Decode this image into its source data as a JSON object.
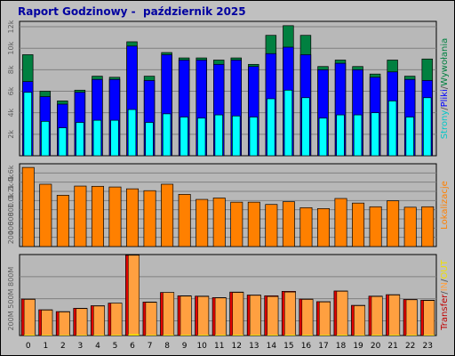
{
  "title": "Raport Godzinowy -  październik 2025",
  "chart_data": [
    {
      "type": "bar",
      "name": "top",
      "categories": [
        "0",
        "1",
        "2",
        "3",
        "4",
        "5",
        "6",
        "7",
        "8",
        "9",
        "10",
        "11",
        "12",
        "13",
        "14",
        "15",
        "16",
        "17",
        "18",
        "19",
        "20",
        "21",
        "22",
        "23"
      ],
      "series": [
        {
          "name": "Wywołania",
          "values": [
            9400,
            6000,
            5100,
            6100,
            7400,
            7300,
            10600,
            7400,
            9600,
            9100,
            9100,
            8900,
            9100,
            8500,
            11200,
            12100,
            11200,
            8300,
            8900,
            8300,
            7600,
            8900,
            7400,
            9000
          ]
        },
        {
          "name": "Pliki",
          "values": [
            6900,
            5500,
            4800,
            5900,
            7100,
            7100,
            10200,
            7000,
            9400,
            8900,
            8900,
            8500,
            8900,
            8300,
            9500,
            10100,
            9400,
            8000,
            8600,
            8000,
            7300,
            7800,
            7100,
            7000
          ]
        },
        {
          "name": "Strony",
          "values": [
            5900,
            3200,
            2600,
            3100,
            3300,
            3300,
            4300,
            3100,
            3900,
            3600,
            3500,
            3800,
            3700,
            3600,
            5300,
            6100,
            5400,
            3500,
            3800,
            3800,
            4000,
            5100,
            3600,
            5400
          ]
        }
      ],
      "right_label": [
        "Strony",
        "/",
        "Pliki",
        "/",
        "Wywołania"
      ],
      "right_label_colors": [
        "#00c8c8",
        "#505050",
        "#0000ff",
        "#505050",
        "#008040"
      ],
      "y_ticks": [
        "2k",
        "4k",
        "6k",
        "8k",
        "10k",
        "12k"
      ],
      "y_tick_values": [
        2000,
        4000,
        6000,
        8000,
        10000,
        12000
      ],
      "ylim": [
        0,
        12500
      ]
    },
    {
      "type": "bar",
      "name": "middle",
      "categories": [
        "0",
        "1",
        "2",
        "3",
        "4",
        "5",
        "6",
        "7",
        "8",
        "9",
        "10",
        "11",
        "12",
        "13",
        "14",
        "15",
        "16",
        "17",
        "18",
        "19",
        "20",
        "21",
        "22",
        "23"
      ],
      "series": [
        {
          "name": "Lokalizacje",
          "values": [
            1720,
            1355,
            1115,
            1315,
            1310,
            1295,
            1255,
            1215,
            1355,
            1135,
            1025,
            1055,
            965,
            965,
            915,
            975,
            845,
            825,
            1045,
            945,
            865,
            995,
            855,
            865
          ]
        }
      ],
      "right_label": [
        "Lokalizacje"
      ],
      "right_label_colors": [
        "#ff8000"
      ],
      "y_ticks": [
        "200",
        "400",
        "600",
        "800",
        "1.0k",
        "1.2k",
        "1.4k",
        "1.6k"
      ],
      "y_tick_values": [
        200,
        400,
        600,
        800,
        1000,
        1200,
        1400,
        1600
      ],
      "ylim": [
        0,
        1800
      ]
    },
    {
      "type": "bar",
      "name": "bottom",
      "categories": [
        "0",
        "1",
        "2",
        "3",
        "4",
        "5",
        "6",
        "7",
        "8",
        "9",
        "10",
        "11",
        "12",
        "13",
        "14",
        "15",
        "16",
        "17",
        "18",
        "19",
        "20",
        "21",
        "22",
        "23"
      ],
      "series": [
        {
          "name": "Transfer",
          "values": [
            495,
            350,
            325,
            370,
            405,
            440,
            1090,
            455,
            585,
            540,
            535,
            515,
            590,
            550,
            540,
            600,
            495,
            460,
            605,
            410,
            535,
            555,
            490,
            480
          ]
        },
        {
          "name": "IN",
          "values": [
            490,
            345,
            320,
            365,
            400,
            440,
            1090,
            450,
            585,
            535,
            530,
            510,
            585,
            545,
            530,
            590,
            490,
            455,
            600,
            405,
            530,
            550,
            485,
            475
          ]
        },
        {
          "name": "OUT",
          "values": [
            10,
            8,
            7,
            8,
            9,
            9,
            20,
            9,
            11,
            10,
            10,
            10,
            11,
            10,
            10,
            11,
            10,
            9,
            11,
            8,
            10,
            10,
            9,
            9
          ]
        }
      ],
      "right_label": [
        "Transfer",
        "/",
        "IN",
        "/",
        "OUT"
      ],
      "right_label_colors": [
        "#c00000",
        "#505050",
        "#ffa040",
        "#505050",
        "#f0e000"
      ],
      "y_ticks": [
        "200M",
        "500M",
        "800M"
      ],
      "y_tick_values": [
        200,
        500,
        800
      ],
      "ylim": [
        0,
        1100
      ]
    }
  ],
  "colors": {
    "page_bg": "#c0c0c0",
    "plot_bg": "#b8b8b8",
    "grid": "#808080",
    "wywolania": "#008040",
    "pliki": "#0000ff",
    "strony": "#00ffff",
    "lokalizacje": "#ff8000",
    "transfer": "#e00000",
    "in_bar": "#ffa040",
    "bar_outline": "#000000"
  }
}
